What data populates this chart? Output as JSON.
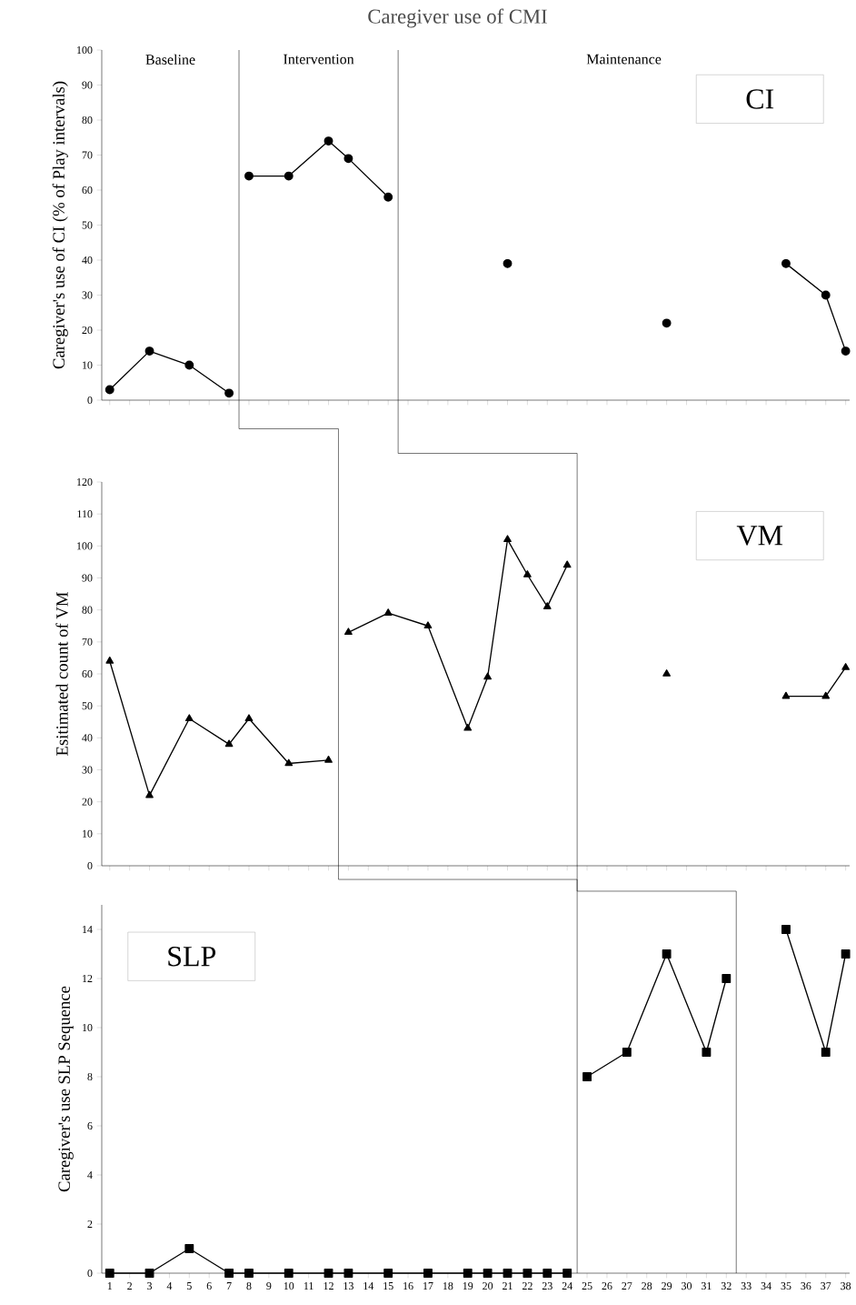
{
  "chart_data": [
    {
      "type": "line",
      "title": "Caregiver use of CMI",
      "subtitle": "CI",
      "ylabel": "Caregiver's use of CI (% of Play intervals)",
      "annotations": [
        "Baseline",
        "Intervention",
        "Maintenance"
      ],
      "series": [
        {
          "color": "#000000",
          "x": [
            1,
            3,
            5,
            7,
            7.5,
            8,
            10,
            12,
            13,
            15,
            18,
            21,
            25,
            29,
            32,
            35,
            37,
            38
          ],
          "values": [
            3,
            14,
            10,
            2,
            null,
            64,
            64,
            74,
            69,
            58,
            null,
            39,
            null,
            22,
            null,
            39,
            30,
            14
          ]
        }
      ],
      "xlim": [
        0.6,
        38.2
      ],
      "xticks": [
        1,
        2,
        3,
        4,
        5,
        6,
        7,
        8,
        9,
        10,
        11,
        12,
        13,
        14,
        15,
        16,
        17,
        18,
        19,
        20,
        21,
        22,
        23,
        24,
        25,
        26,
        27,
        28,
        29,
        30,
        31,
        32,
        33,
        34,
        35,
        36,
        37,
        38
      ],
      "ylim": [
        0,
        100
      ],
      "yticks": [
        0,
        10,
        20,
        30,
        40,
        50,
        60,
        70,
        80,
        90,
        100
      ],
      "tick_labels": "y",
      "marker": "circle",
      "line_style": "solid",
      "ref_lines": [
        {
          "axis": "x",
          "value": 7.5
        },
        {
          "axis": "x",
          "value": 15.5
        }
      ]
    },
    {
      "type": "line",
      "subtitle": "VM",
      "ylabel": "Esitimated count of VM",
      "series": [
        {
          "color": "#000000",
          "x": [
            1,
            3,
            5,
            7,
            8,
            10,
            12,
            12.5,
            13,
            15,
            17,
            19,
            20,
            21,
            22,
            23,
            24,
            26,
            29,
            32,
            35,
            37,
            38
          ],
          "values": [
            64,
            22,
            46,
            38,
            46,
            32,
            33,
            null,
            73,
            79,
            75,
            43,
            59,
            102,
            91,
            81,
            94,
            null,
            60,
            null,
            53,
            53,
            62
          ]
        }
      ],
      "xlim": [
        0.6,
        38.2
      ],
      "xticks": [
        1,
        2,
        3,
        4,
        5,
        6,
        7,
        8,
        9,
        10,
        11,
        12,
        13,
        14,
        15,
        16,
        17,
        18,
        19,
        20,
        21,
        22,
        23,
        24,
        25,
        26,
        27,
        28,
        29,
        30,
        31,
        32,
        33,
        34,
        35,
        36,
        37,
        38
      ],
      "ylim": [
        0,
        120
      ],
      "yticks": [
        0,
        10,
        20,
        30,
        40,
        50,
        60,
        70,
        80,
        90,
        100,
        110,
        120
      ],
      "tick_labels": "y",
      "marker": "triangle",
      "line_style": "solid",
      "ref_lines": [
        {
          "axis": "x",
          "value": 12.5
        },
        {
          "axis": "x",
          "value": 24.5
        }
      ]
    },
    {
      "type": "line",
      "subtitle": "SLP",
      "ylabel": "Caregiver's use SLP Sequence",
      "series": [
        {
          "color": "#000000",
          "x": [
            1,
            3,
            5,
            7,
            8,
            10,
            12,
            13,
            15,
            17,
            19,
            20,
            21,
            22,
            23,
            24,
            24.5,
            25,
            27,
            29,
            31,
            32,
            33,
            35,
            37,
            38
          ],
          "values": [
            0,
            0,
            1,
            0,
            0,
            0,
            0,
            0,
            0,
            0,
            0,
            0,
            0,
            0,
            0,
            0,
            null,
            8,
            9,
            13,
            9,
            12,
            null,
            14,
            9,
            13
          ]
        }
      ],
      "xlim": [
        0.6,
        38.2
      ],
      "xticks": [
        1,
        2,
        3,
        4,
        5,
        6,
        7,
        8,
        9,
        10,
        11,
        12,
        13,
        14,
        15,
        16,
        17,
        18,
        19,
        20,
        21,
        22,
        23,
        24,
        25,
        26,
        27,
        28,
        29,
        30,
        31,
        32,
        33,
        34,
        35,
        36,
        37,
        38
      ],
      "ylim": [
        0,
        15
      ],
      "yticks": [
        0,
        2,
        4,
        6,
        8,
        10,
        12,
        14
      ],
      "marker": "square",
      "line_style": "solid",
      "ref_lines": [
        {
          "axis": "x",
          "value": 24.5
        },
        {
          "axis": "x",
          "value": 32.5
        }
      ]
    }
  ]
}
